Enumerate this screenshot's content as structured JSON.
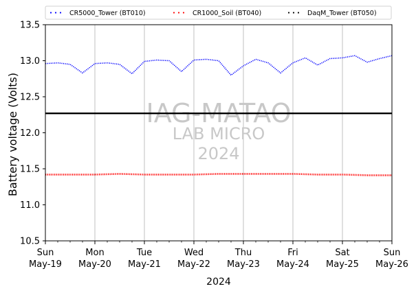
{
  "chart_data": {
    "type": "line",
    "title": "",
    "xlabel": "2024",
    "ylabel": "Battery voltage (Volts)",
    "ylim": [
      10.5,
      13.5
    ],
    "yticks": [
      "10.5",
      "11.0",
      "11.5",
      "12.0",
      "12.5",
      "13.0",
      "13.5"
    ],
    "xlim": [
      "2024-05-19",
      "2024-05-26"
    ],
    "xticks": [
      {
        "day": "Sun",
        "date": "May-19"
      },
      {
        "day": "Mon",
        "date": "May-20"
      },
      {
        "day": "Tue",
        "date": "May-21"
      },
      {
        "day": "Wed",
        "date": "May-22"
      },
      {
        "day": "Thu",
        "date": "May-23"
      },
      {
        "day": "Fri",
        "date": "May-24"
      },
      {
        "day": "Sat",
        "date": "May-25"
      },
      {
        "day": "Sun",
        "date": "May-26"
      }
    ],
    "grid": "vertical",
    "legend": {
      "placement": "top, above plot",
      "columns": 3
    },
    "series": [
      {
        "name": "CR5000_Tower (BT010)",
        "color": "#0000ff",
        "style": "dotted",
        "x": [
          "2024-05-19 00:00",
          "2024-05-19 06:00",
          "2024-05-19 12:00",
          "2024-05-19 18:00",
          "2024-05-20 00:00",
          "2024-05-20 06:00",
          "2024-05-20 12:00",
          "2024-05-20 18:00",
          "2024-05-21 00:00",
          "2024-05-21 06:00",
          "2024-05-21 12:00",
          "2024-05-21 18:00",
          "2024-05-22 00:00",
          "2024-05-22 06:00",
          "2024-05-22 12:00",
          "2024-05-22 18:00",
          "2024-05-23 00:00",
          "2024-05-23 06:00",
          "2024-05-23 12:00",
          "2024-05-23 18:00",
          "2024-05-24 00:00",
          "2024-05-24 06:00",
          "2024-05-24 12:00",
          "2024-05-24 18:00",
          "2024-05-25 00:00",
          "2024-05-25 06:00",
          "2024-05-25 12:00",
          "2024-05-25 18:00",
          "2024-05-26 00:00"
        ],
        "y": [
          12.96,
          12.97,
          12.95,
          12.83,
          12.96,
          12.97,
          12.95,
          12.82,
          12.99,
          13.01,
          13.0,
          12.85,
          13.01,
          13.02,
          13.0,
          12.8,
          12.93,
          13.02,
          12.97,
          12.83,
          12.97,
          13.04,
          12.94,
          13.03,
          13.04,
          13.07,
          12.98,
          13.03,
          13.07
        ]
      },
      {
        "name": "CR1000_Soil (BT040)",
        "color": "#ff0000",
        "style": "dotted",
        "x": [
          "2024-05-19 00:00",
          "2024-05-19 12:00",
          "2024-05-20 00:00",
          "2024-05-20 12:00",
          "2024-05-21 00:00",
          "2024-05-21 12:00",
          "2024-05-22 00:00",
          "2024-05-22 12:00",
          "2024-05-23 00:00",
          "2024-05-23 12:00",
          "2024-05-24 00:00",
          "2024-05-24 12:00",
          "2024-05-25 00:00",
          "2024-05-25 12:00",
          "2024-05-26 00:00"
        ],
        "y": [
          11.42,
          11.42,
          11.42,
          11.43,
          11.42,
          11.42,
          11.42,
          11.43,
          11.43,
          11.43,
          11.43,
          11.42,
          11.42,
          11.41,
          11.41
        ]
      },
      {
        "name": "DaqM_Tower (BT050)",
        "color": "#000000",
        "style": "solid",
        "x": [
          "2024-05-19 00:00",
          "2024-05-26 00:00"
        ],
        "y": [
          12.27,
          12.27
        ]
      }
    ],
    "watermark": [
      "IAG-MATAO",
      "LAB MICRO",
      "2024"
    ]
  }
}
